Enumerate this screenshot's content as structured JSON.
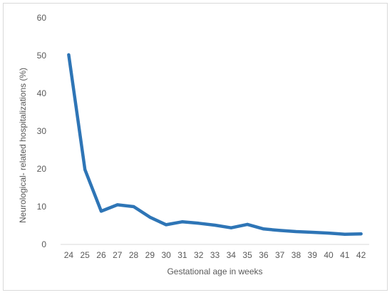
{
  "chart_data": {
    "type": "line",
    "title": "",
    "xlabel": "Gestational age in weeks",
    "ylabel": "Neurological- related hospitalizations (%)",
    "ylim": [
      0,
      60
    ],
    "yticks": [
      0,
      10,
      20,
      30,
      40,
      50,
      60
    ],
    "grid": false,
    "legend": "none",
    "categories": [
      "24",
      "25",
      "26",
      "27",
      "28",
      "29",
      "30",
      "31",
      "32",
      "33",
      "34",
      "35",
      "36",
      "37",
      "38",
      "39",
      "40",
      "41",
      "42"
    ],
    "series": [
      {
        "color": "#2e75b6",
        "values": [
          50.2,
          19.8,
          8.8,
          10.5,
          10.0,
          7.2,
          5.2,
          6.0,
          5.6,
          5.1,
          4.4,
          5.3,
          4.1,
          3.7,
          3.4,
          3.2,
          3.0,
          2.7,
          2.8
        ]
      }
    ]
  }
}
